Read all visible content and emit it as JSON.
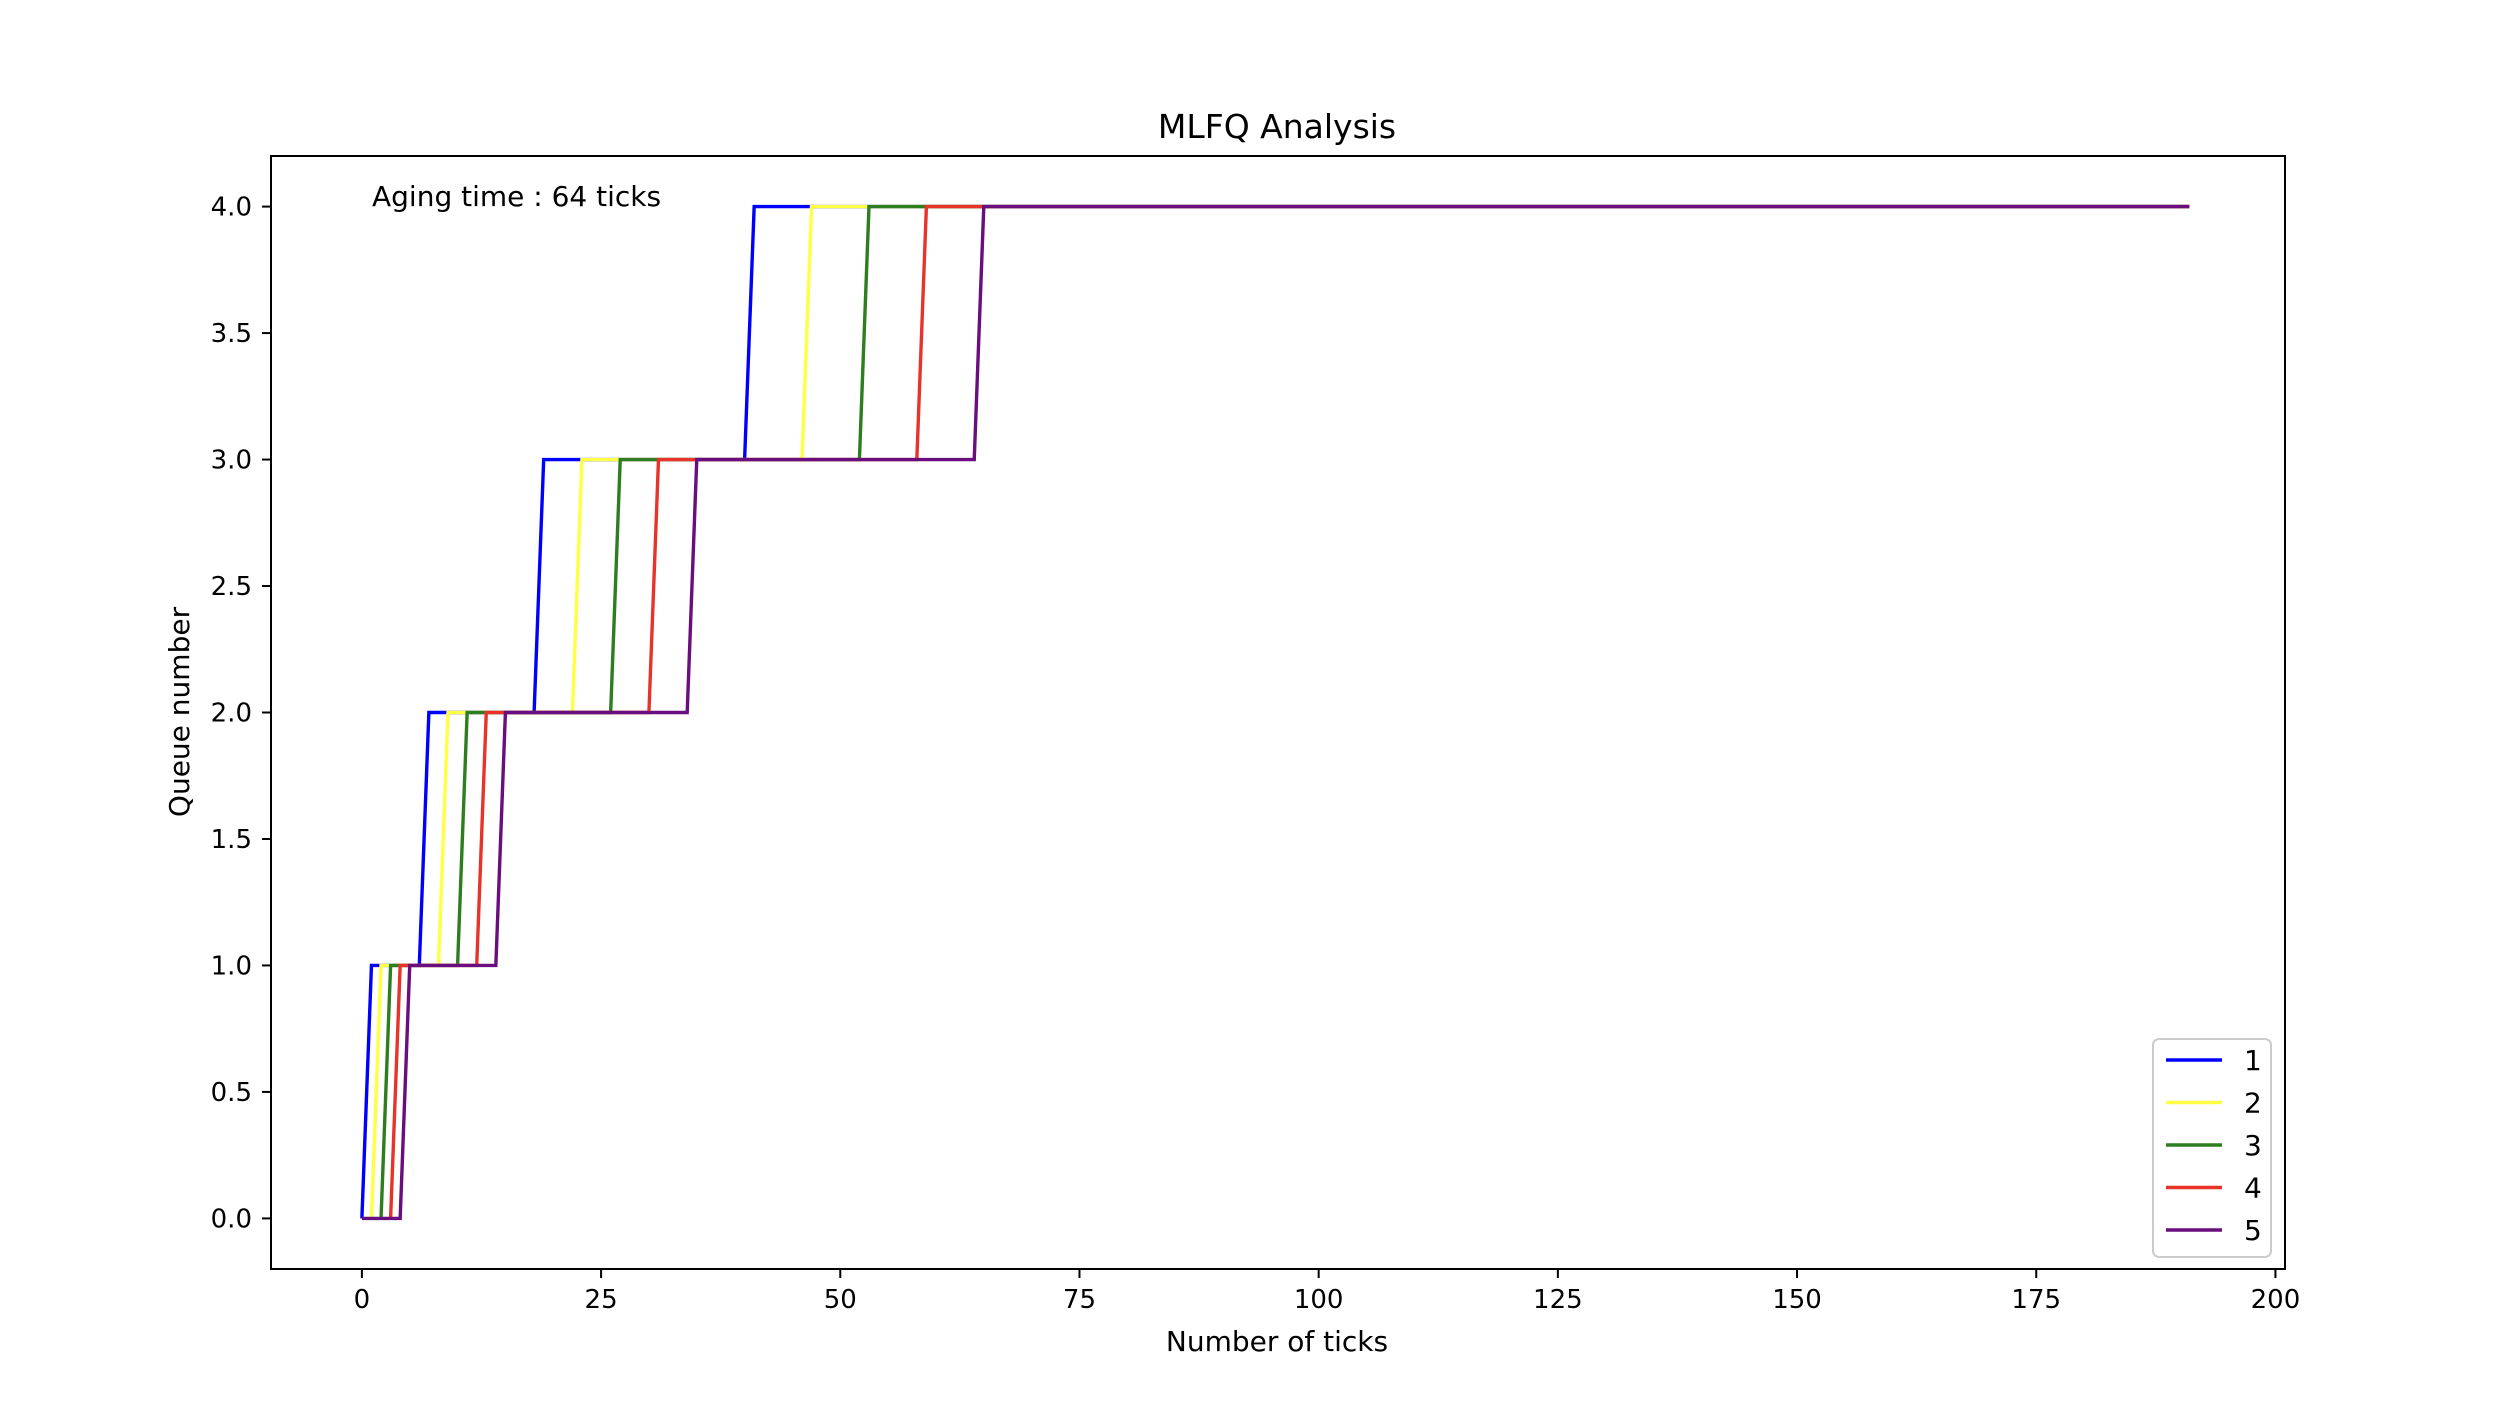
{
  "chart_data": {
    "type": "line",
    "title": "MLFQ Analysis",
    "xlabel": "Number of ticks",
    "ylabel": "Queue number",
    "xlim": [
      -9.5,
      201
    ],
    "ylim": [
      -0.2,
      4.2
    ],
    "xticks": [
      0,
      25,
      50,
      75,
      100,
      125,
      150,
      175,
      200
    ],
    "yticks": [
      0.0,
      0.5,
      1.0,
      1.5,
      2.0,
      2.5,
      3.0,
      3.5,
      4.0
    ],
    "xtick_labels": [
      "0",
      "25",
      "50",
      "75",
      "100",
      "125",
      "150",
      "175",
      "200"
    ],
    "ytick_labels": [
      "0.0",
      "0.5",
      "1.0",
      "1.5",
      "2.0",
      "2.5",
      "3.0",
      "3.5",
      "4.0"
    ],
    "grid": false,
    "legend_position": "lower-right",
    "annotation": "Aging time : 64 ticks",
    "series": [
      {
        "name": "1",
        "color": "#0000ff",
        "x": [
          0,
          1,
          6,
          7,
          18,
          19,
          40,
          41,
          191
        ],
        "y": [
          0,
          1,
          1,
          2,
          2,
          3,
          3,
          4,
          4
        ]
      },
      {
        "name": "2",
        "color": "#ffff44",
        "x": [
          1,
          2,
          8,
          9,
          22,
          23,
          46,
          47,
          191
        ],
        "y": [
          0,
          1,
          1,
          2,
          2,
          3,
          3,
          4,
          4
        ]
      },
      {
        "name": "3",
        "color": "#2e7d1e",
        "x": [
          2,
          3,
          10,
          11,
          26,
          27,
          52,
          53,
          191
        ],
        "y": [
          0,
          1,
          1,
          2,
          2,
          3,
          3,
          4,
          4
        ]
      },
      {
        "name": "4",
        "color": "#e8332a",
        "x": [
          3,
          4,
          12,
          13,
          30,
          31,
          58,
          59,
          191
        ],
        "y": [
          0,
          1,
          1,
          2,
          2,
          3,
          3,
          4,
          4
        ]
      },
      {
        "name": "5",
        "color": "#6a0d7f",
        "x": [
          0,
          4,
          5,
          14,
          15,
          34,
          35,
          64,
          65,
          191
        ],
        "y": [
          0,
          0,
          1,
          1,
          2,
          2,
          3,
          3,
          4,
          4
        ]
      }
    ]
  }
}
